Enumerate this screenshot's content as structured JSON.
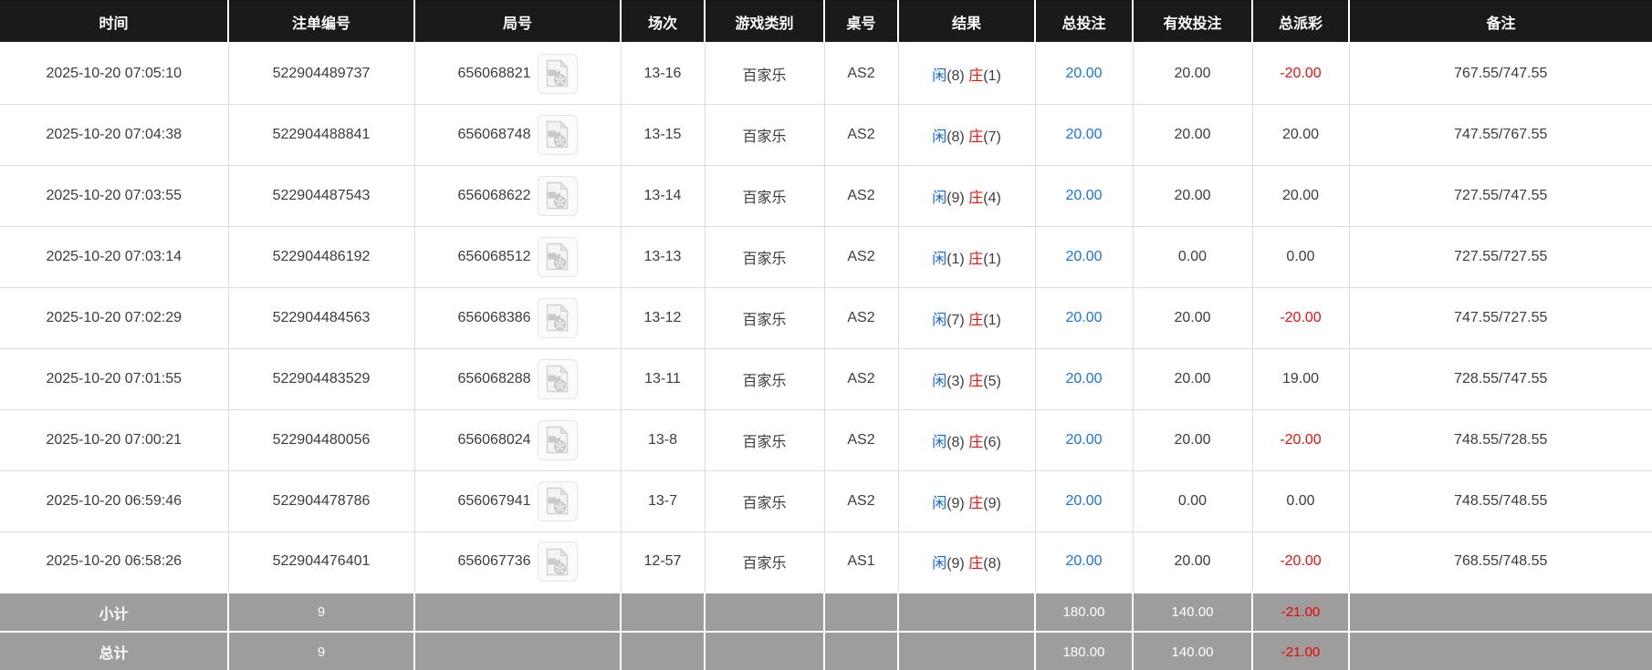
{
  "table": {
    "columns": [
      {
        "key": "time",
        "label": "时间"
      },
      {
        "key": "bet_id",
        "label": "注单编号"
      },
      {
        "key": "round",
        "label": "局号"
      },
      {
        "key": "session",
        "label": "场次"
      },
      {
        "key": "game_type",
        "label": "游戏类别"
      },
      {
        "key": "table_no",
        "label": "桌号"
      },
      {
        "key": "result",
        "label": "结果"
      },
      {
        "key": "total_bet",
        "label": "总投注"
      },
      {
        "key": "valid_bet",
        "label": "有效投注"
      },
      {
        "key": "payout",
        "label": "总派彩"
      },
      {
        "key": "remark",
        "label": "备注"
      }
    ],
    "rows": [
      {
        "time": "2025-10-20 07:05:10",
        "bet_id": "522904489737",
        "round_id": "656068821",
        "session": "13-16",
        "game_type": "百家乐",
        "table_no": "AS2",
        "result_player": "闲",
        "result_player_score": "(8)",
        "result_banker": "庄",
        "result_banker_score": "(1)",
        "total_bet": "20.00",
        "valid_bet": "20.00",
        "payout": "-20.00",
        "remark": "767.55/747.55"
      },
      {
        "time": "2025-10-20 07:04:38",
        "bet_id": "522904488841",
        "round_id": "656068748",
        "session": "13-15",
        "game_type": "百家乐",
        "table_no": "AS2",
        "result_player": "闲",
        "result_player_score": "(8)",
        "result_banker": "庄",
        "result_banker_score": "(7)",
        "total_bet": "20.00",
        "valid_bet": "20.00",
        "payout": "20.00",
        "remark": "747.55/767.55"
      },
      {
        "time": "2025-10-20 07:03:55",
        "bet_id": "522904487543",
        "round_id": "656068622",
        "session": "13-14",
        "game_type": "百家乐",
        "table_no": "AS2",
        "result_player": "闲",
        "result_player_score": "(9)",
        "result_banker": "庄",
        "result_banker_score": "(4)",
        "total_bet": "20.00",
        "valid_bet": "20.00",
        "payout": "20.00",
        "remark": "727.55/747.55"
      },
      {
        "time": "2025-10-20 07:03:14",
        "bet_id": "522904486192",
        "round_id": "656068512",
        "session": "13-13",
        "game_type": "百家乐",
        "table_no": "AS2",
        "result_player": "闲",
        "result_player_score": "(1)",
        "result_banker": "庄",
        "result_banker_score": "(1)",
        "total_bet": "20.00",
        "valid_bet": "0.00",
        "payout": "0.00",
        "remark": "727.55/727.55"
      },
      {
        "time": "2025-10-20 07:02:29",
        "bet_id": "522904484563",
        "round_id": "656068386",
        "session": "13-12",
        "game_type": "百家乐",
        "table_no": "AS2",
        "result_player": "闲",
        "result_player_score": "(7)",
        "result_banker": "庄",
        "result_banker_score": "(1)",
        "total_bet": "20.00",
        "valid_bet": "20.00",
        "payout": "-20.00",
        "remark": "747.55/727.55"
      },
      {
        "time": "2025-10-20 07:01:55",
        "bet_id": "522904483529",
        "round_id": "656068288",
        "session": "13-11",
        "game_type": "百家乐",
        "table_no": "AS2",
        "result_player": "闲",
        "result_player_score": "(3)",
        "result_banker": "庄",
        "result_banker_score": "(5)",
        "total_bet": "20.00",
        "valid_bet": "20.00",
        "payout": "19.00",
        "remark": "728.55/747.55"
      },
      {
        "time": "2025-10-20 07:00:21",
        "bet_id": "522904480056",
        "round_id": "656068024",
        "session": "13-8",
        "game_type": "百家乐",
        "table_no": "AS2",
        "result_player": "闲",
        "result_player_score": "(8)",
        "result_banker": "庄",
        "result_banker_score": "(6)",
        "total_bet": "20.00",
        "valid_bet": "20.00",
        "payout": "-20.00",
        "remark": "748.55/728.55"
      },
      {
        "time": "2025-10-20 06:59:46",
        "bet_id": "522904478786",
        "round_id": "656067941",
        "session": "13-7",
        "game_type": "百家乐",
        "table_no": "AS2",
        "result_player": "闲",
        "result_player_score": "(9)",
        "result_banker": "庄",
        "result_banker_score": "(9)",
        "total_bet": "20.00",
        "valid_bet": "0.00",
        "payout": "0.00",
        "remark": "748.55/748.55"
      },
      {
        "time": "2025-10-20 06:58:26",
        "bet_id": "522904476401",
        "round_id": "656067736",
        "session": "12-57",
        "game_type": "百家乐",
        "table_no": "AS1",
        "result_player": "闲",
        "result_player_score": "(9)",
        "result_banker": "庄",
        "result_banker_score": "(8)",
        "total_bet": "20.00",
        "valid_bet": "20.00",
        "payout": "-20.00",
        "remark": "768.55/748.55"
      }
    ],
    "summary": [
      {
        "label": "小计",
        "count": "9",
        "total_bet": "180.00",
        "valid_bet": "140.00",
        "payout": "-21.00"
      },
      {
        "label": "总计",
        "count": "9",
        "total_bet": "180.00",
        "valid_bet": "140.00",
        "payout": "-21.00"
      }
    ]
  },
  "icons": {
    "video_replay": "video-replay-icon"
  },
  "colors": {
    "header_bg": "#1a1a1a",
    "summary_bg": "#9d9d9d",
    "player_blue": "#1565d8",
    "banker_red": "#e8110f",
    "bet_blue": "#1a73e8",
    "negative_red": "#ee1111"
  }
}
